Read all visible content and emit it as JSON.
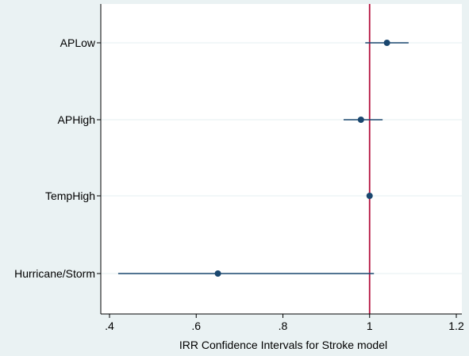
{
  "chart_data": {
    "type": "scatter",
    "xlabel": "IRR Confidence Intervals for Stroke model",
    "ylabel": "",
    "title": "",
    "xlim": [
      0.38,
      1.2
    ],
    "x_ticks": [
      {
        "value": 0.4,
        "label": ".4"
      },
      {
        "value": 0.6,
        "label": ".6"
      },
      {
        "value": 0.8,
        "label": ".8"
      },
      {
        "value": 1.0,
        "label": "1"
      },
      {
        "value": 1.2,
        "label": "1.2"
      }
    ],
    "reference_line": {
      "x": 1.0,
      "color": "#b5123f"
    },
    "grid": true,
    "categories": [
      "APLow",
      "APHigh",
      "TempHigh",
      "Hurricane/Storm"
    ],
    "estimates": [
      1.04,
      0.98,
      1.0,
      0.65
    ],
    "ci_lower": [
      0.99,
      0.94,
      0.995,
      0.42
    ],
    "ci_upper": [
      1.09,
      1.03,
      1.005,
      1.01
    ],
    "colors": {
      "background": "#eaf2f3",
      "plot_area": "#ffffff",
      "grid": "#eaf2f3",
      "marker": "#1a476f",
      "ci_line": "#1a476f",
      "axis": "#000000"
    }
  }
}
